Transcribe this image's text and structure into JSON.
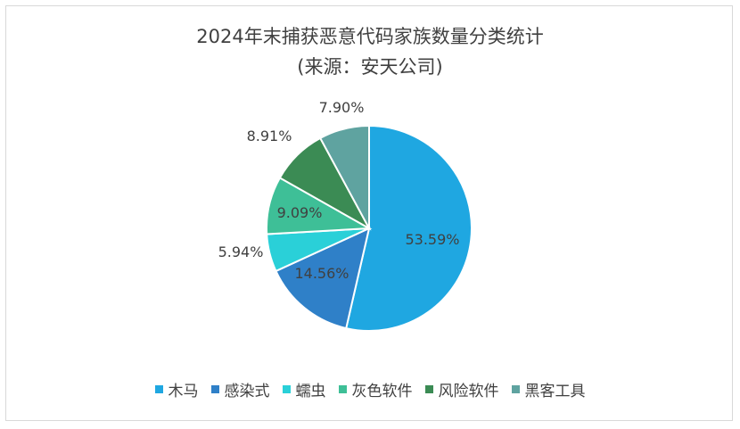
{
  "chart_data": {
    "type": "pie",
    "title_line1": "2024年末捕获恶意代码家族数量分类统计",
    "title_line2": "(来源：安天公司)",
    "slices": [
      {
        "name": "木马",
        "value": 53.59,
        "label": "53.59%",
        "color": "#1fa7e1"
      },
      {
        "name": "感染式",
        "value": 14.56,
        "label": "14.56%",
        "color": "#2f80c8"
      },
      {
        "name": "蠕虫",
        "value": 5.94,
        "label": "5.94%",
        "color": "#2ad0d8"
      },
      {
        "name": "灰色软件",
        "value": 9.09,
        "label": "9.09%",
        "color": "#3ebf97"
      },
      {
        "name": "风险软件",
        "value": 8.91,
        "label": "8.91%",
        "color": "#3b8b54"
      },
      {
        "name": "黑客工具",
        "value": 7.9,
        "label": "7.90%",
        "color": "#5fa3a0"
      }
    ],
    "legend_position": "bottom"
  }
}
